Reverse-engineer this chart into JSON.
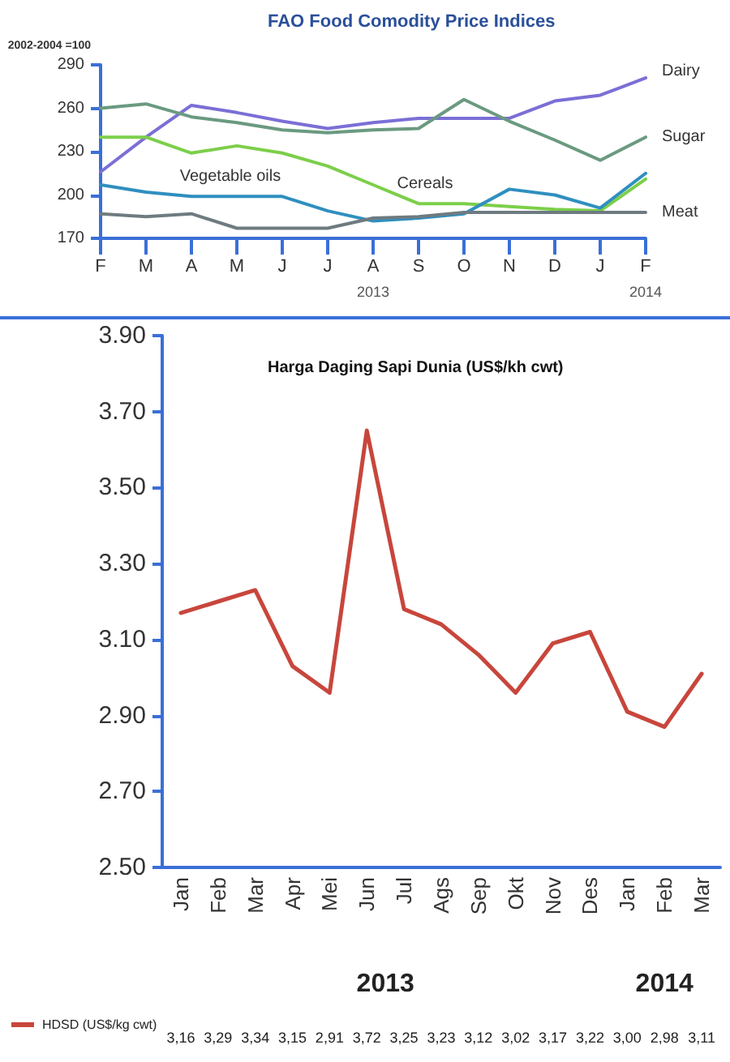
{
  "chart_data": [
    {
      "type": "line",
      "title": "FAO Food Comodity Price Indices",
      "ylabel": "2002-2004 =100",
      "categories": [
        "F",
        "M",
        "A",
        "M",
        "J",
        "J",
        "A",
        "S",
        "O",
        "N",
        "D",
        "J",
        "F"
      ],
      "series": [
        {
          "name": "Dairy",
          "color": "#7b6fd6",
          "values": [
            216,
            240,
            262,
            257,
            251,
            246,
            250,
            253,
            253,
            253,
            265,
            269,
            281
          ]
        },
        {
          "name": "Sugar",
          "color": "#6a9a80",
          "values": [
            260,
            263,
            254,
            250,
            245,
            243,
            245,
            246,
            266,
            251,
            238,
            224,
            240
          ]
        },
        {
          "name": "Cereals",
          "color": "#7ccf4a",
          "values": [
            240,
            240,
            229,
            234,
            229,
            220,
            207,
            194,
            194,
            192,
            190,
            189,
            211
          ]
        },
        {
          "name": "Vegetable oils",
          "color": "#2f8fbf",
          "values": [
            207,
            202,
            199,
            199,
            199,
            189,
            182,
            184,
            187,
            204,
            200,
            191,
            215
          ]
        },
        {
          "name": "Meat",
          "color": "#6e7b80",
          "values": [
            187,
            185,
            187,
            177,
            177,
            177,
            184,
            185,
            188,
            188,
            188,
            188,
            188
          ]
        }
      ],
      "ylim": [
        170,
        290
      ],
      "yticks": [
        170,
        200,
        230,
        260,
        290
      ],
      "grid": false,
      "legend": false,
      "marker": "none",
      "line_style": "solid",
      "annotations": [
        "2013",
        "2014"
      ]
    },
    {
      "type": "line",
      "title": "Harga Daging Sapi Dunia (US$/kh cwt)",
      "categories": [
        "Jan",
        "Feb",
        "Mar",
        "Apr",
        "Mei",
        "Jun",
        "Jul",
        "Ags",
        "Sep",
        "Okt",
        "Nov",
        "Des",
        "Jan",
        "Feb",
        "Mar"
      ],
      "series": [
        {
          "name": "HDSD (US$/kg cwt)",
          "color": "#c8463c",
          "values": [
            3.17,
            3.2,
            3.23,
            3.03,
            2.96,
            3.65,
            3.18,
            3.14,
            3.06,
            2.96,
            3.09,
            3.12,
            2.91,
            2.87,
            3.01
          ]
        }
      ],
      "ylim": [
        2.5,
        3.9
      ],
      "yticks": [
        {
          "value": 2.5,
          "label": "2.50"
        },
        {
          "value": 2.7,
          "label": "2.70"
        },
        {
          "value": 2.9,
          "label": "2.90"
        },
        {
          "value": 3.1,
          "label": "3.10"
        },
        {
          "value": 3.3,
          "label": "3.30"
        },
        {
          "value": 3.5,
          "label": "3.50"
        },
        {
          "value": 3.7,
          "label": "3.70"
        },
        {
          "value": 3.9,
          "label": "3.90"
        }
      ],
      "grid": false,
      "legend": "bottom left",
      "marker": "none",
      "line_style": "solid",
      "annotations": [
        "2013",
        "2014",
        "3,16",
        "3,29",
        "3,34",
        "3,15",
        "2,91",
        "3,72",
        "3,25",
        "3,23",
        "3,12",
        "3,02",
        "3,17",
        "3,22",
        "3,00",
        "2,98",
        "3,11"
      ]
    }
  ]
}
